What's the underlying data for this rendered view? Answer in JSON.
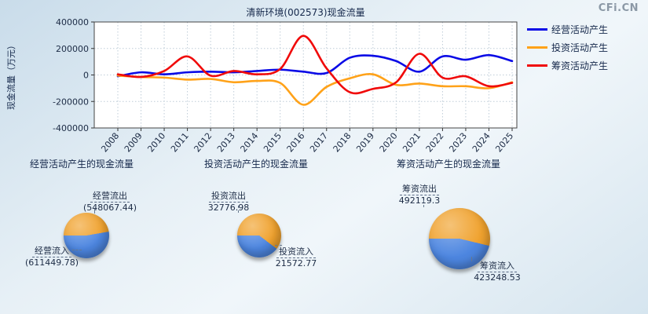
{
  "brand": {
    "logo": "CFi.CN"
  },
  "chart_data": [
    {
      "type": "line",
      "title": "清新环境(002573)现金流量",
      "ylabel": "现金流量（万元）",
      "ylim": [
        -400000,
        400000
      ],
      "yticks": [
        400000,
        200000,
        0,
        -200000,
        -400000
      ],
      "grid": true,
      "legend_position": "top-right",
      "x": [
        2008,
        2009,
        2010,
        2011,
        2012,
        2013,
        2014,
        2015,
        2016,
        2017,
        2018,
        2019,
        2020,
        2021,
        2022,
        2023,
        2024,
        2025
      ],
      "series": [
        {
          "name": "经营活动产生",
          "color": "#0a0ae6",
          "values": [
            -10000,
            20000,
            5000,
            20000,
            25000,
            20000,
            30000,
            40000,
            25000,
            15000,
            130000,
            145000,
            105000,
            25000,
            140000,
            115000,
            150000,
            105000
          ]
        },
        {
          "name": "投资活动产生",
          "color": "#ffa219",
          "values": [
            -5000,
            -15000,
            -20000,
            -35000,
            -30000,
            -55000,
            -45000,
            -60000,
            -225000,
            -90000,
            -25000,
            5000,
            -75000,
            -65000,
            -85000,
            -85000,
            -100000,
            -55000
          ]
        },
        {
          "name": "筹资活动产生",
          "color": "#f00a0a",
          "values": [
            5000,
            -15000,
            30000,
            140000,
            -5000,
            30000,
            5000,
            45000,
            295000,
            50000,
            -130000,
            -105000,
            -55000,
            160000,
            -20000,
            -10000,
            -85000,
            -60000
          ]
        }
      ]
    },
    {
      "type": "pie",
      "title": "经营活动产生的现金流量",
      "slices": [
        {
          "label": "经营流出",
          "value": 548067.44,
          "display": "(548067.44)",
          "color": "#f0a22e"
        },
        {
          "label": "经营流入",
          "value": 611449.78,
          "display": "(611449.78)",
          "color": "#4d86e0"
        }
      ]
    },
    {
      "type": "pie",
      "title": "投资活动产生的现金流量",
      "slices": [
        {
          "label": "投资流出",
          "value": 32776.98,
          "display": "32776.98",
          "color": "#f0a22e"
        },
        {
          "label": "投资流入",
          "value": 21572.77,
          "display": "21572.77",
          "color": "#4d86e0"
        }
      ]
    },
    {
      "type": "pie",
      "title": "筹资活动产生的现金流量",
      "slices": [
        {
          "label": "筹资流出",
          "value": 492119.3,
          "display": "492119.3",
          "color": "#f0a22e"
        },
        {
          "label": "筹资流入",
          "value": 423248.53,
          "display": "423248.53",
          "color": "#4d86e0"
        }
      ]
    }
  ]
}
